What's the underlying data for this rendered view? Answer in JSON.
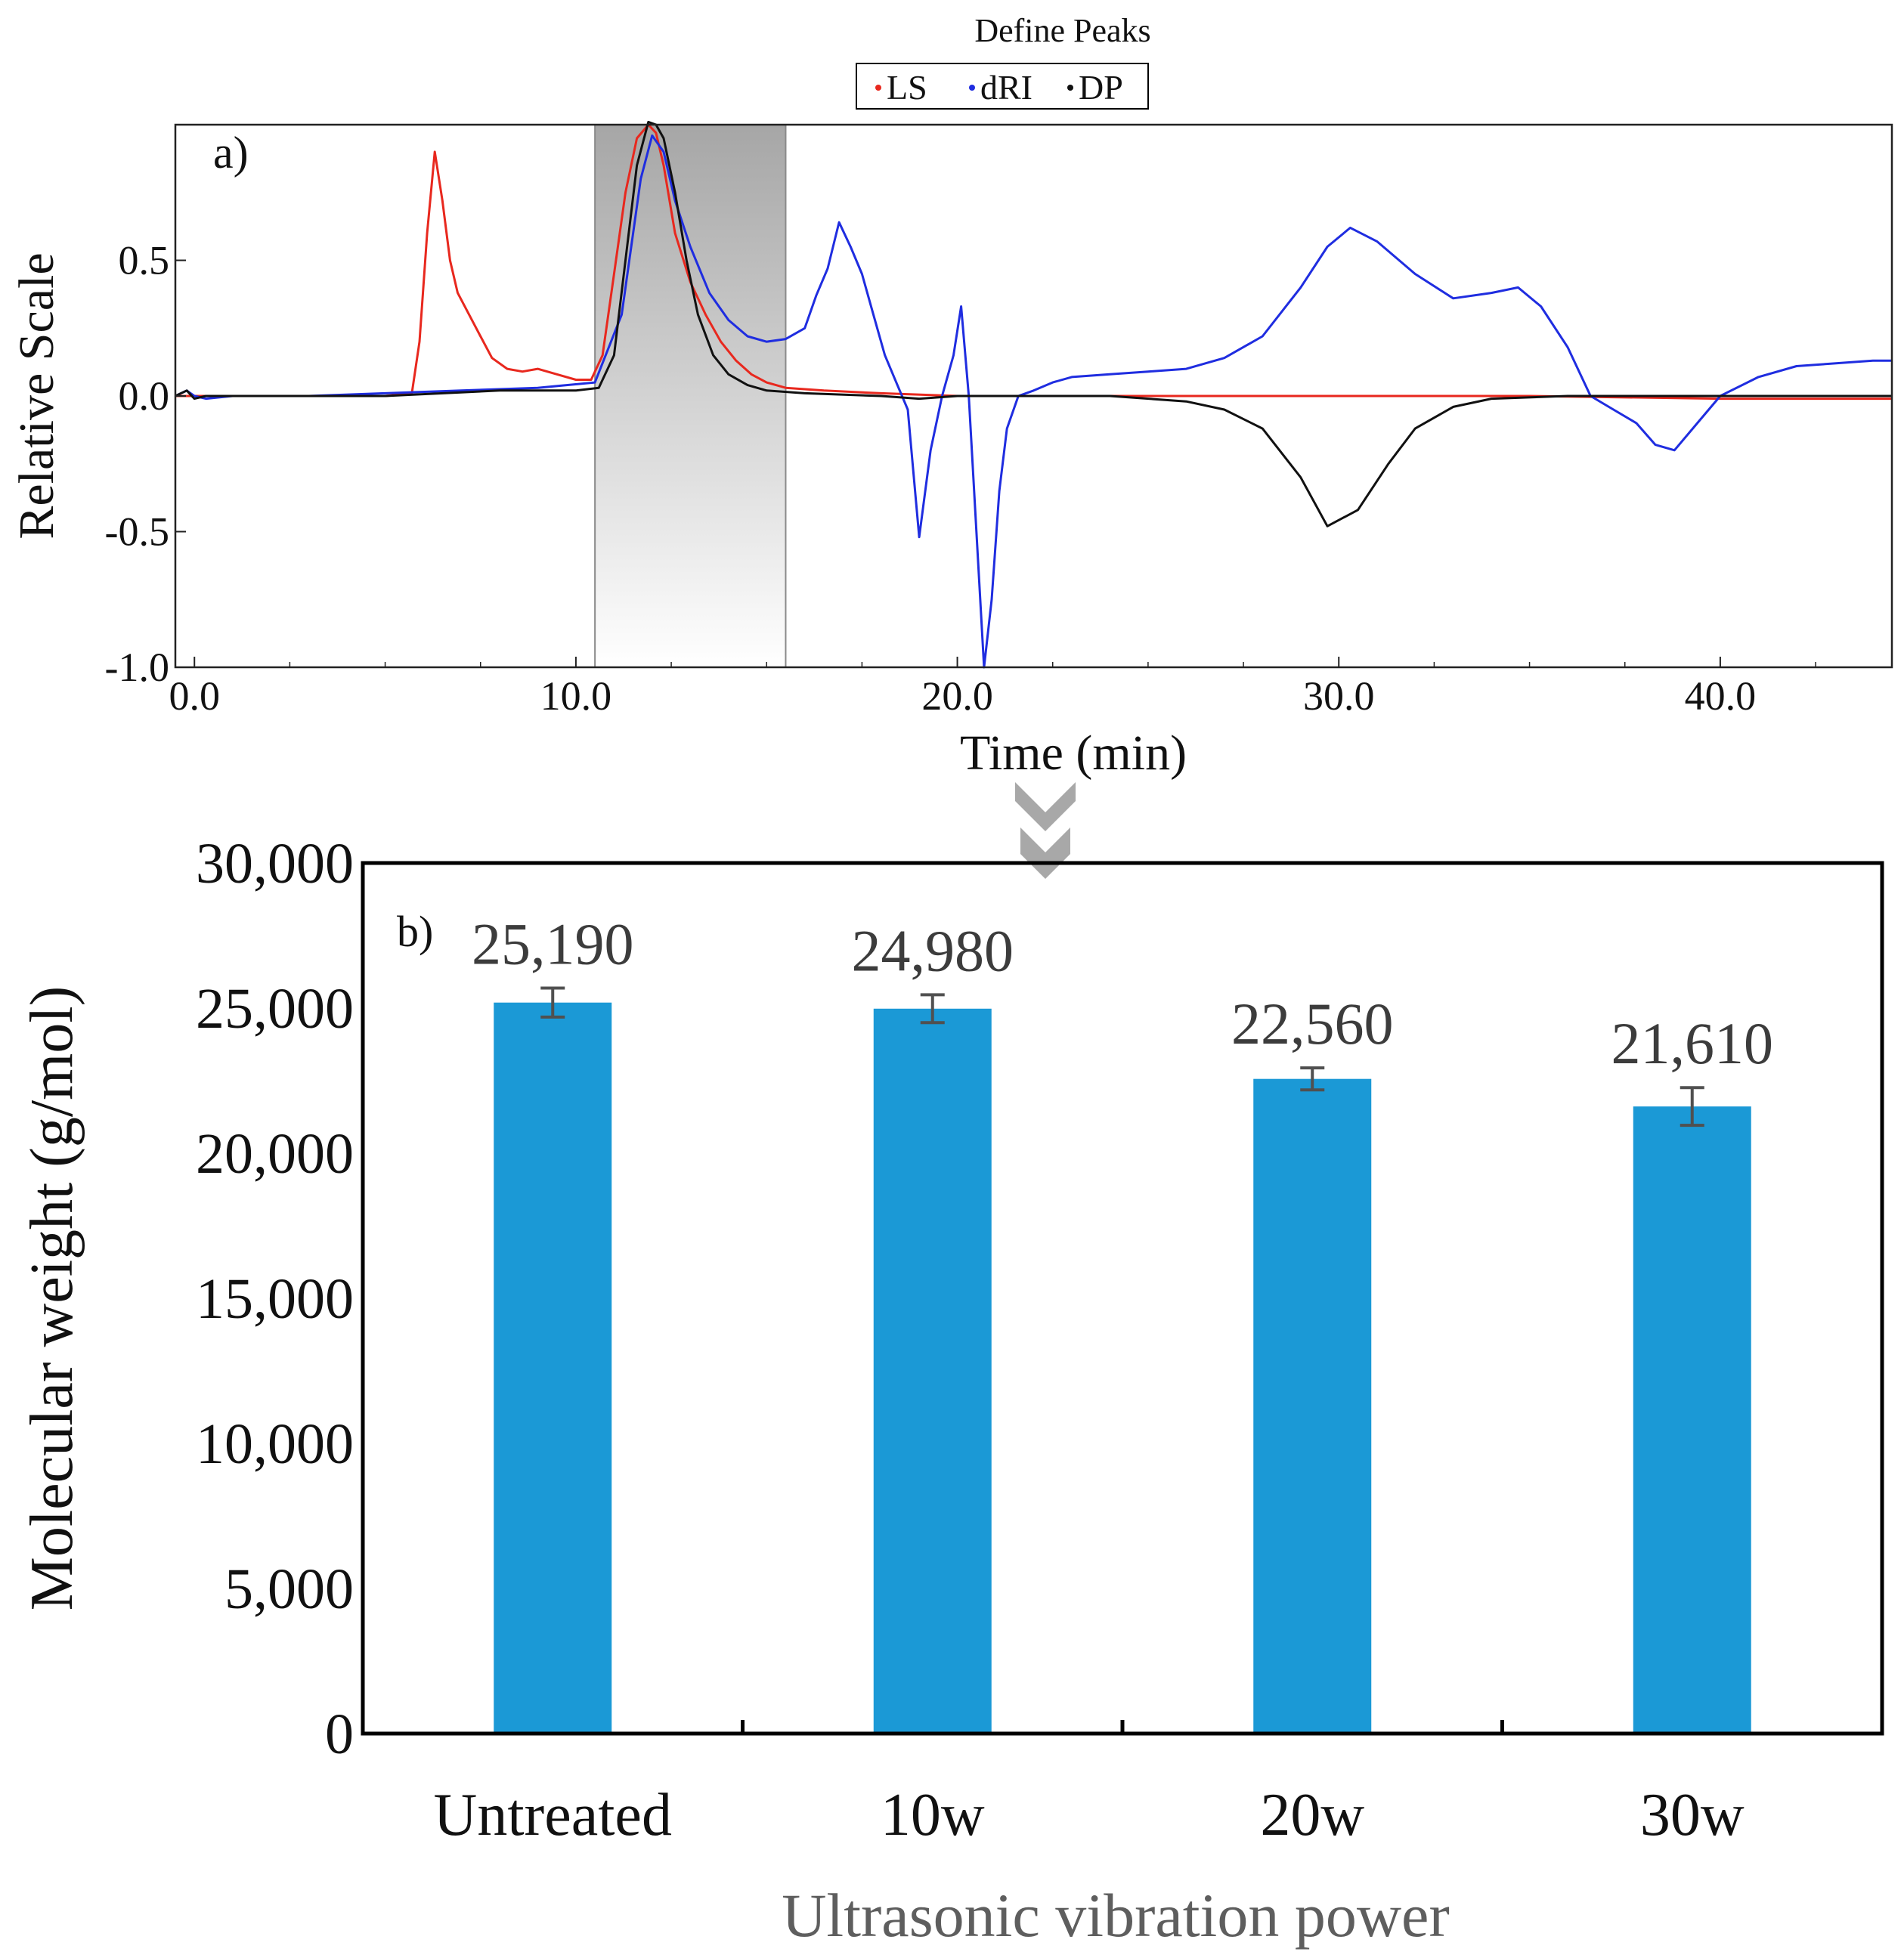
{
  "chart_data": [
    {
      "id": "a",
      "type": "line",
      "panel_label": "a)",
      "title": "Define Peaks",
      "xlabel": "Time (min)",
      "ylabel": "Relative Scale",
      "xlim": [
        -0.5,
        44.5
      ],
      "ylim": [
        -1.0,
        1.0
      ],
      "x_ticks": [
        "0.0",
        "10.0",
        "20.0",
        "30.0",
        "40.0"
      ],
      "x_tick_values": [
        0,
        10,
        20,
        30,
        40
      ],
      "y_ticks": [
        "0.5",
        "0.0",
        "-0.5",
        "-1.0"
      ],
      "y_tick_values": [
        0.5,
        0.0,
        -0.5,
        -1.0
      ],
      "peak_region": [
        10.5,
        15.5
      ],
      "legend": [
        "LS",
        "dRI",
        "DP"
      ],
      "series": [
        {
          "name": "LS",
          "color": "#e8281e",
          "x": [
            -0.5,
            0,
            1,
            2,
            3,
            4,
            5,
            5.7,
            5.9,
            6.1,
            6.3,
            6.5,
            6.7,
            6.9,
            7.2,
            7.5,
            7.8,
            8.2,
            8.6,
            9.0,
            9.5,
            10.0,
            10.4,
            10.7,
            11.0,
            11.3,
            11.6,
            11.9,
            12.1,
            12.3,
            12.6,
            13.0,
            13.4,
            13.8,
            14.2,
            14.6,
            15.0,
            15.5,
            16.5,
            18,
            20,
            22,
            25,
            28,
            30,
            35,
            40,
            44.5
          ],
          "y": [
            0.0,
            0.0,
            0.0,
            0.0,
            0.0,
            0.0,
            0.0,
            0.01,
            0.2,
            0.6,
            0.9,
            0.72,
            0.5,
            0.38,
            0.3,
            0.22,
            0.14,
            0.1,
            0.09,
            0.1,
            0.08,
            0.06,
            0.06,
            0.15,
            0.45,
            0.75,
            0.95,
            1.0,
            0.97,
            0.85,
            0.6,
            0.42,
            0.3,
            0.2,
            0.13,
            0.08,
            0.05,
            0.03,
            0.02,
            0.01,
            0.0,
            0.0,
            0.0,
            0.0,
            0.0,
            0.0,
            -0.01,
            -0.01
          ]
        },
        {
          "name": "dRI",
          "color": "#1f2de0",
          "x": [
            -0.5,
            -0.2,
            0,
            0.3,
            1,
            3,
            5,
            7,
            9,
            10.5,
            11.2,
            11.7,
            12.0,
            12.3,
            12.6,
            13.0,
            13.5,
            14.0,
            14.5,
            15.0,
            15.5,
            16.0,
            16.3,
            16.6,
            16.9,
            17.2,
            17.5,
            17.8,
            18.1,
            18.4,
            18.7,
            19.0,
            19.3,
            19.6,
            19.9,
            20.1,
            20.3,
            20.5,
            20.7,
            20.9,
            21.1,
            21.3,
            21.6,
            22.0,
            22.5,
            23,
            24,
            25,
            26,
            27,
            28,
            29,
            29.7,
            30.3,
            31,
            32,
            33,
            34,
            34.7,
            35.3,
            36,
            36.6,
            37.2,
            37.8,
            38.3,
            38.8,
            39.4,
            40,
            41,
            42,
            43,
            44,
            44.5
          ],
          "y": [
            0.0,
            0.02,
            0.0,
            -0.01,
            0.0,
            0.0,
            0.01,
            0.02,
            0.03,
            0.05,
            0.3,
            0.8,
            0.96,
            0.9,
            0.72,
            0.55,
            0.38,
            0.28,
            0.22,
            0.2,
            0.21,
            0.25,
            0.37,
            0.47,
            0.64,
            0.55,
            0.45,
            0.3,
            0.15,
            0.05,
            -0.05,
            -0.52,
            -0.2,
            0.0,
            0.15,
            0.33,
            0.0,
            -0.5,
            -1.0,
            -0.75,
            -0.35,
            -0.12,
            0.0,
            0.02,
            0.05,
            0.07,
            0.08,
            0.09,
            0.1,
            0.14,
            0.22,
            0.4,
            0.55,
            0.62,
            0.57,
            0.45,
            0.36,
            0.38,
            0.4,
            0.33,
            0.18,
            0.0,
            -0.05,
            -0.1,
            -0.18,
            -0.2,
            -0.1,
            0.0,
            0.07,
            0.11,
            0.12,
            0.13,
            0.13
          ]
        },
        {
          "name": "DP",
          "color": "#111111",
          "x": [
            -0.5,
            -0.2,
            0,
            0.3,
            2,
            5,
            8,
            10,
            10.6,
            11.0,
            11.3,
            11.6,
            11.9,
            12.1,
            12.3,
            12.6,
            12.9,
            13.2,
            13.6,
            14.0,
            14.5,
            15.0,
            16,
            18,
            19,
            20,
            21,
            22,
            24,
            26,
            27,
            28,
            29,
            29.7,
            30.5,
            31.3,
            32,
            33,
            34,
            36,
            38,
            40,
            42,
            44.5
          ],
          "y": [
            0.0,
            0.02,
            -0.01,
            0.0,
            0.0,
            0.0,
            0.02,
            0.02,
            0.03,
            0.15,
            0.5,
            0.85,
            1.01,
            1.0,
            0.95,
            0.75,
            0.5,
            0.3,
            0.15,
            0.08,
            0.04,
            0.02,
            0.01,
            0.0,
            -0.01,
            0.0,
            0.0,
            0.0,
            0.0,
            -0.02,
            -0.05,
            -0.12,
            -0.3,
            -0.48,
            -0.42,
            -0.25,
            -0.12,
            -0.04,
            -0.01,
            0.0,
            0.0,
            0.0,
            0.0,
            0.0
          ]
        }
      ]
    },
    {
      "id": "b",
      "type": "bar",
      "panel_label": "b)",
      "title": "",
      "xlabel": "Ultrasonic vibration power",
      "ylabel": "Molecular weight (g/mol)",
      "ylim": [
        0,
        30000
      ],
      "y_ticks": [
        "30,000",
        "25,000",
        "20,000",
        "15,000",
        "10,000",
        "5,000",
        "0"
      ],
      "y_tick_values": [
        30000,
        25000,
        20000,
        15000,
        10000,
        5000,
        0
      ],
      "categories": [
        "Untreated",
        "10w",
        "20w",
        "30w"
      ],
      "values": [
        25190,
        24980,
        22560,
        21610
      ],
      "value_labels": [
        "25,190",
        "24,980",
        "22,560",
        "21,610"
      ],
      "errors": [
        500,
        480,
        380,
        650
      ],
      "bar_color": "#1b99d6",
      "error_color": "#505050"
    }
  ]
}
